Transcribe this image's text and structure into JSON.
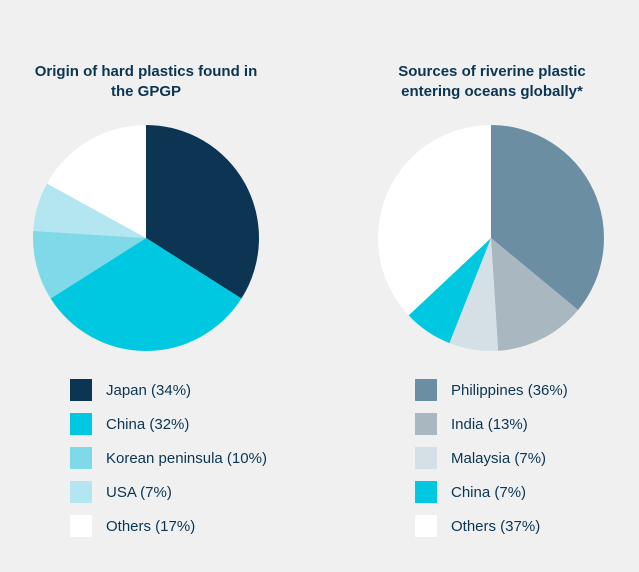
{
  "chart_data": [
    {
      "type": "pie",
      "title": "Origin of hard plastics found in the GPGP",
      "categories": [
        "Japan (34%)",
        "China (32%)",
        "Korean peninsula (10%)",
        "USA (7%)",
        "Others (17%)"
      ],
      "values": [
        34,
        32,
        10,
        7,
        17
      ],
      "colors": [
        "#0b3553",
        "#00c8e0",
        "#7fd9e8",
        "#b3e6f0",
        "#ffffff"
      ]
    },
    {
      "type": "pie",
      "title": "Sources of riverine plastic entering oceans globally*",
      "categories": [
        "Philippines (36%)",
        "India (13%)",
        "Malaysia (7%)",
        "China (7%)",
        "Others (37%)"
      ],
      "values": [
        36,
        13,
        7,
        7,
        37
      ],
      "colors": [
        "#6b8ea3",
        "#a9b8c0",
        "#d5e0e6",
        "#00c8e0",
        "#ffffff"
      ]
    }
  ]
}
